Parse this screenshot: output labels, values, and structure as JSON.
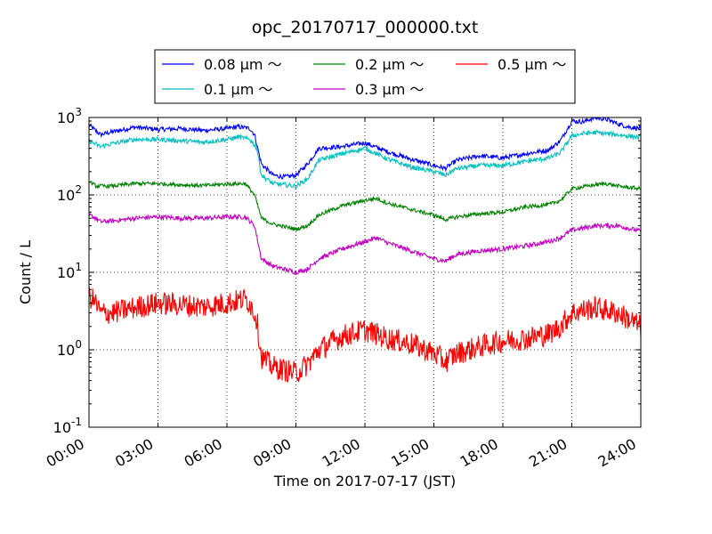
{
  "chart_data": {
    "type": "line",
    "title": "opc_20170717_000000.txt",
    "xlabel": "Time on 2017-07-17 (JST)",
    "ylabel": "Count / L",
    "yscale": "log",
    "ylim_exponents": [
      -1,
      3
    ],
    "xlim_hours": [
      0,
      24
    ],
    "x_tick_labels": [
      "00:00",
      "03:00",
      "06:00",
      "09:00",
      "12:00",
      "15:00",
      "18:00",
      "21:00",
      "24:00"
    ],
    "y_tick_labels": [
      {
        "base": "10",
        "exp": "-1"
      },
      {
        "base": "10",
        "exp": "0"
      },
      {
        "base": "10",
        "exp": "1"
      },
      {
        "base": "10",
        "exp": "2"
      },
      {
        "base": "10",
        "exp": "3"
      }
    ],
    "grid": true,
    "legend_position": "top",
    "series": [
      {
        "name": "0.08 μm ～",
        "color": "#0000ff",
        "noise": 0.03,
        "points": [
          [
            0,
            800
          ],
          [
            0.5,
            600
          ],
          [
            1,
            650
          ],
          [
            2,
            750
          ],
          [
            3,
            700
          ],
          [
            4,
            720
          ],
          [
            5,
            680
          ],
          [
            6,
            720
          ],
          [
            6.5,
            760
          ],
          [
            7,
            720
          ],
          [
            7.2,
            600
          ],
          [
            7.5,
            250
          ],
          [
            8,
            180
          ],
          [
            8.5,
            170
          ],
          [
            9,
            180
          ],
          [
            9.5,
            250
          ],
          [
            10,
            400
          ],
          [
            11,
            420
          ],
          [
            12,
            470
          ],
          [
            13,
            360
          ],
          [
            14,
            290
          ],
          [
            15,
            240
          ],
          [
            15.5,
            220
          ],
          [
            16,
            280
          ],
          [
            17,
            320
          ],
          [
            18,
            300
          ],
          [
            19,
            340
          ],
          [
            20,
            380
          ],
          [
            20.5,
            500
          ],
          [
            21,
            900
          ],
          [
            21.5,
            880
          ],
          [
            22,
            1000
          ],
          [
            22.5,
            950
          ],
          [
            23,
            830
          ],
          [
            23.5,
            750
          ],
          [
            24,
            720
          ]
        ]
      },
      {
        "name": "0.3 μm ～",
        "color": "#bf00bf",
        "noise": 0.03,
        "points": [
          [
            0,
            55
          ],
          [
            0.3,
            50
          ],
          [
            0.5,
            45
          ],
          [
            1,
            46
          ],
          [
            2,
            50
          ],
          [
            3,
            52
          ],
          [
            4,
            50
          ],
          [
            5,
            50
          ],
          [
            6,
            52
          ],
          [
            6.8,
            52
          ],
          [
            7.2,
            40
          ],
          [
            7.5,
            15
          ],
          [
            8,
            12
          ],
          [
            8.5,
            11
          ],
          [
            9,
            10
          ],
          [
            9.5,
            11
          ],
          [
            10,
            15
          ],
          [
            11,
            20
          ],
          [
            12,
            25
          ],
          [
            12.5,
            28
          ],
          [
            13,
            24
          ],
          [
            14,
            19
          ],
          [
            15,
            15
          ],
          [
            15.5,
            14
          ],
          [
            16,
            17
          ],
          [
            17,
            19
          ],
          [
            18,
            20
          ],
          [
            19,
            22
          ],
          [
            20,
            25
          ],
          [
            20.5,
            28
          ],
          [
            21,
            35
          ],
          [
            22,
            40
          ],
          [
            23,
            40
          ],
          [
            24,
            34
          ]
        ]
      },
      {
        "name": "0.1 μm ～",
        "color": "#00bfbf",
        "noise": 0.03,
        "points": [
          [
            0,
            500
          ],
          [
            0.5,
            420
          ],
          [
            1,
            460
          ],
          [
            2,
            520
          ],
          [
            3,
            520
          ],
          [
            4,
            500
          ],
          [
            5,
            480
          ],
          [
            6,
            520
          ],
          [
            6.5,
            560
          ],
          [
            7,
            520
          ],
          [
            7.3,
            400
          ],
          [
            7.5,
            180
          ],
          [
            8,
            140
          ],
          [
            9,
            130
          ],
          [
            9.5,
            160
          ],
          [
            10,
            280
          ],
          [
            11,
            340
          ],
          [
            12,
            400
          ],
          [
            13,
            290
          ],
          [
            14,
            230
          ],
          [
            15,
            200
          ],
          [
            15.5,
            180
          ],
          [
            16,
            220
          ],
          [
            17,
            240
          ],
          [
            18,
            240
          ],
          [
            19,
            270
          ],
          [
            20,
            300
          ],
          [
            20.5,
            350
          ],
          [
            21,
            580
          ],
          [
            21.5,
            620
          ],
          [
            22,
            640
          ],
          [
            23,
            600
          ],
          [
            24,
            550
          ]
        ]
      },
      {
        "name": "0.2 μm ～",
        "color": "#008000",
        "noise": 0.025,
        "points": [
          [
            0,
            150
          ],
          [
            0.3,
            130
          ],
          [
            1,
            130
          ],
          [
            2,
            140
          ],
          [
            3,
            140
          ],
          [
            4,
            135
          ],
          [
            5,
            132
          ],
          [
            6,
            138
          ],
          [
            6.8,
            140
          ],
          [
            7.2,
            100
          ],
          [
            7.5,
            50
          ],
          [
            8,
            42
          ],
          [
            9,
            36
          ],
          [
            9.5,
            40
          ],
          [
            10,
            55
          ],
          [
            11,
            72
          ],
          [
            12,
            85
          ],
          [
            12.5,
            90
          ],
          [
            13,
            78
          ],
          [
            14,
            65
          ],
          [
            15,
            55
          ],
          [
            15.5,
            48
          ],
          [
            16,
            52
          ],
          [
            17,
            57
          ],
          [
            18,
            60
          ],
          [
            19,
            70
          ],
          [
            20,
            75
          ],
          [
            20.5,
            85
          ],
          [
            21,
            120
          ],
          [
            22,
            135
          ],
          [
            22.5,
            140
          ],
          [
            23,
            130
          ],
          [
            24,
            120
          ]
        ]
      },
      {
        "name": "0.5 μm ～",
        "color": "#ff0000",
        "noise": 0.15,
        "points": [
          [
            0,
            5
          ],
          [
            0.3,
            4
          ],
          [
            0.5,
            3
          ],
          [
            1,
            3
          ],
          [
            2,
            3.5
          ],
          [
            3,
            4
          ],
          [
            4,
            3.8
          ],
          [
            5,
            3.6
          ],
          [
            6,
            4
          ],
          [
            6.8,
            4.5
          ],
          [
            7,
            4
          ],
          [
            7.3,
            2.5
          ],
          [
            7.5,
            0.8
          ],
          [
            8,
            0.6
          ],
          [
            8.5,
            0.55
          ],
          [
            9,
            0.5
          ],
          [
            9.5,
            0.65
          ],
          [
            10,
            1.0
          ],
          [
            11,
            1.5
          ],
          [
            12,
            1.8
          ],
          [
            13,
            1.4
          ],
          [
            14,
            1.2
          ],
          [
            15,
            0.9
          ],
          [
            15.5,
            0.7
          ],
          [
            16,
            0.9
          ],
          [
            17,
            1.1
          ],
          [
            18,
            1.3
          ],
          [
            19,
            1.4
          ],
          [
            20,
            1.6
          ],
          [
            20.5,
            2.0
          ],
          [
            21,
            3.0
          ],
          [
            22,
            3.5
          ],
          [
            23,
            3.0
          ],
          [
            24,
            2.0
          ]
        ]
      }
    ],
    "legend_rows": [
      [
        0,
        3,
        4
      ],
      [
        2,
        1
      ]
    ]
  }
}
